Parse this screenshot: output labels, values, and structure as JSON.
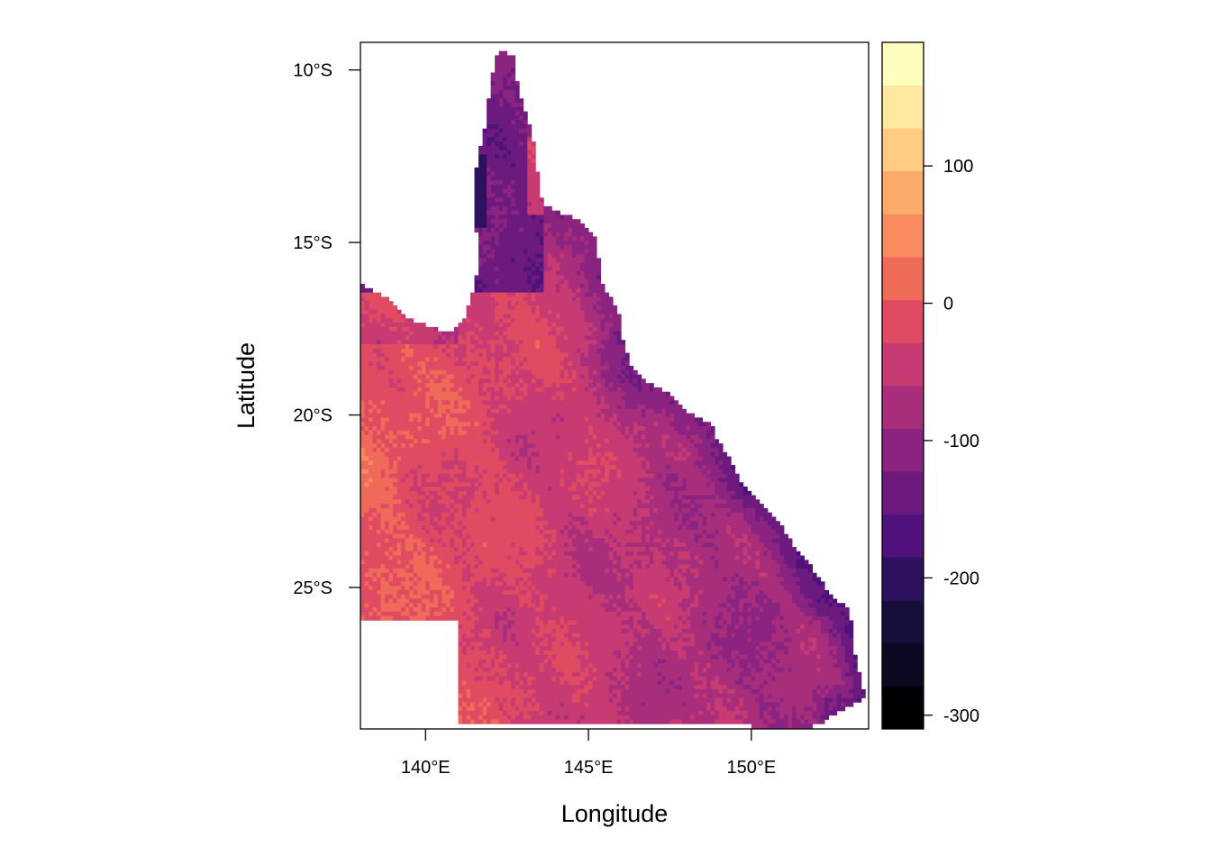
{
  "chart_data": {
    "type": "heatmap",
    "title": "",
    "xlabel": "Longitude",
    "ylabel": "Latitude",
    "xlim": [
      138.0,
      153.6
    ],
    "ylim": [
      -29.1,
      -9.2
    ],
    "x_ticks": [
      {
        "value": 140,
        "label": "140°E"
      },
      {
        "value": 145,
        "label": "145°E"
      },
      {
        "value": 150,
        "label": "150°E"
      }
    ],
    "y_ticks": [
      {
        "value": -10,
        "label": "10°S"
      },
      {
        "value": -15,
        "label": "15°S"
      },
      {
        "value": -20,
        "label": "20°S"
      },
      {
        "value": -25,
        "label": "25°S"
      }
    ],
    "colorbar": {
      "range": [
        -310,
        190
      ],
      "breaks": [
        -310,
        -260,
        -210,
        -160,
        -110,
        -60,
        -10,
        40,
        90,
        140,
        190
      ],
      "tick_values": [
        100,
        0,
        -100,
        -200,
        -300
      ],
      "tick_labels": [
        "100",
        "0",
        "-100",
        "-200",
        "-300"
      ],
      "colors": [
        "#000004",
        "#0c0a23",
        "#170f3a",
        "#2d1160",
        "#4f127b",
        "#6d1a7f",
        "#8b2480",
        "#a82e7c",
        "#c73b72",
        "#e04b61",
        "#f06a5a",
        "#f88c5e",
        "#fdab6a",
        "#fecb82",
        "#fde99e",
        "#fcfdbf"
      ]
    },
    "grid": false,
    "description": "Raster map of Queensland, Australia; values mostly between -160 and 60, lower along the eastern ranges and higher in the western interior."
  }
}
